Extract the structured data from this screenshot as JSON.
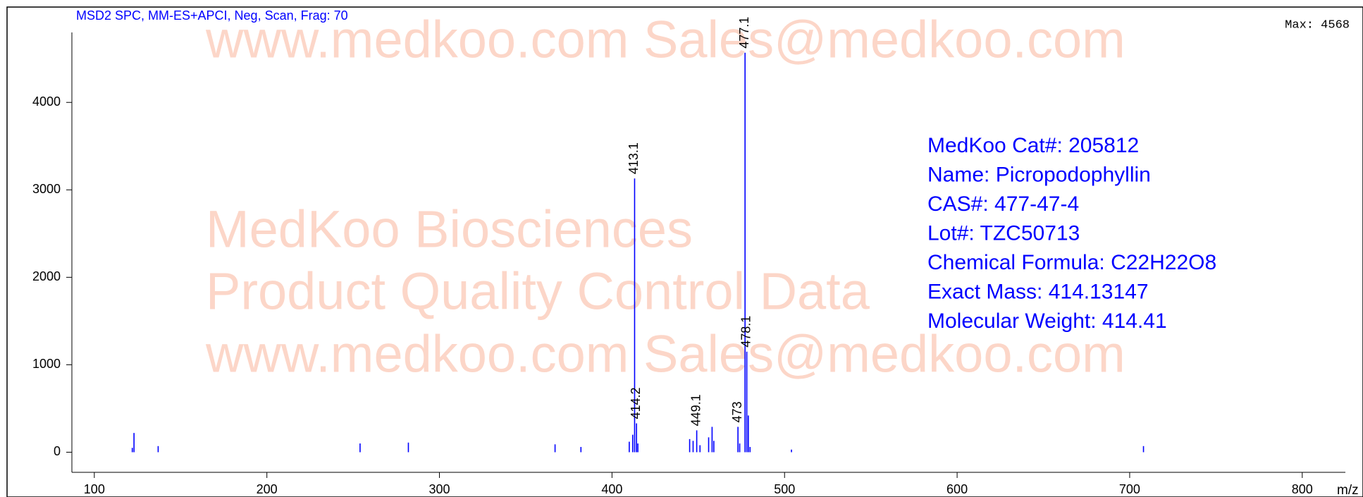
{
  "chart_data": {
    "type": "bar",
    "header": "MSD2 SPC,   MM-ES+APCI, Neg, Scan, Frag: 70",
    "max_label": "Max: 4568",
    "x_label": "m/z",
    "xlim": [
      87,
      825
    ],
    "ylim": [
      -230,
      4800
    ],
    "xticks": [
      100,
      200,
      300,
      400,
      500,
      600,
      700,
      800
    ],
    "yticks": [
      0,
      1000,
      2000,
      3000,
      4000
    ],
    "series": [
      {
        "color": "#0000ff",
        "labels": true,
        "x": [
          413.1,
          414.2,
          449.1,
          473.0,
          477.1,
          478.1
        ],
        "values": [
          3130,
          330,
          250,
          290,
          4568,
          1150
        ]
      },
      {
        "color": "#0000ff",
        "labels": false,
        "x": [
          122,
          123,
          137,
          254,
          282,
          367,
          382,
          410,
          412,
          415,
          445,
          447,
          451,
          456,
          458,
          459,
          474,
          479,
          480,
          504,
          708
        ],
        "values": [
          50,
          220,
          70,
          100,
          110,
          90,
          60,
          120,
          200,
          100,
          150,
          130,
          80,
          170,
          290,
          130,
          100,
          420,
          60,
          30,
          70
        ]
      }
    ],
    "info": [
      "MedKoo Cat#: 205812",
      "Name:  Picropodophyllin",
      "CAS#:  477-47-4",
      "Lot#: TZC50713",
      "Chemical Formula: C22H22O8",
      "Exact Mass: 414.13147",
      "Molecular Weight: 414.41"
    ],
    "watermarks": [
      "www.medkoo.com   Sales@medkoo.com",
      "MedKoo Biosciences",
      "Product Quality Control Data",
      "www.medkoo.com   Sales@medkoo.com"
    ]
  }
}
